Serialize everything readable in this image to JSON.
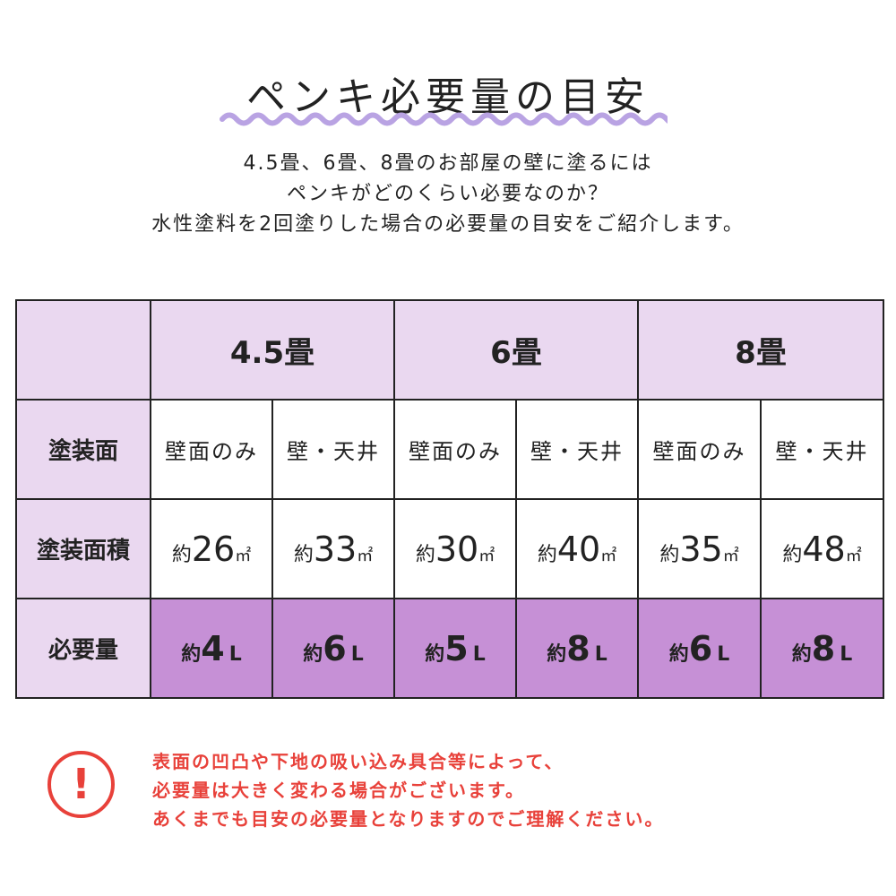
{
  "title": "ペンキ必要量の目安",
  "intro": [
    "4.5畳、6畳、8畳のお部屋の壁に塗るには",
    "ペンキがどのくらい必要なのか？",
    "水性塗料を2回塗りした場合の必要量の目安をご紹介します。"
  ],
  "table": {
    "rooms": [
      "4.5畳",
      "6畳",
      "8畳"
    ],
    "row_labels": [
      "塗装面",
      "塗装面積",
      "必要量"
    ],
    "faces": [
      "壁面のみ",
      "壁・天井",
      "壁面のみ",
      "壁・天井",
      "壁面のみ",
      "壁・天井"
    ],
    "prefix": "約",
    "area_unit": "㎡",
    "areas": [
      "26",
      "33",
      "30",
      "40",
      "35",
      "48"
    ],
    "volume_unit": "L",
    "volumes": [
      "4",
      "6",
      "5",
      "8",
      "6",
      "8"
    ]
  },
  "colors": {
    "header_bg": "#ead8f0",
    "highlight_bg": "#c690d6",
    "warning": "#e8413a",
    "wave": "#b9a3e3"
  },
  "warning_icon": "!",
  "notes": [
    "表面の凹凸や下地の吸い込み具合等によって、",
    "必要量は大きく変わる場合がございます。",
    "あくまでも目安の必要量となりますのでご理解ください。"
  ]
}
